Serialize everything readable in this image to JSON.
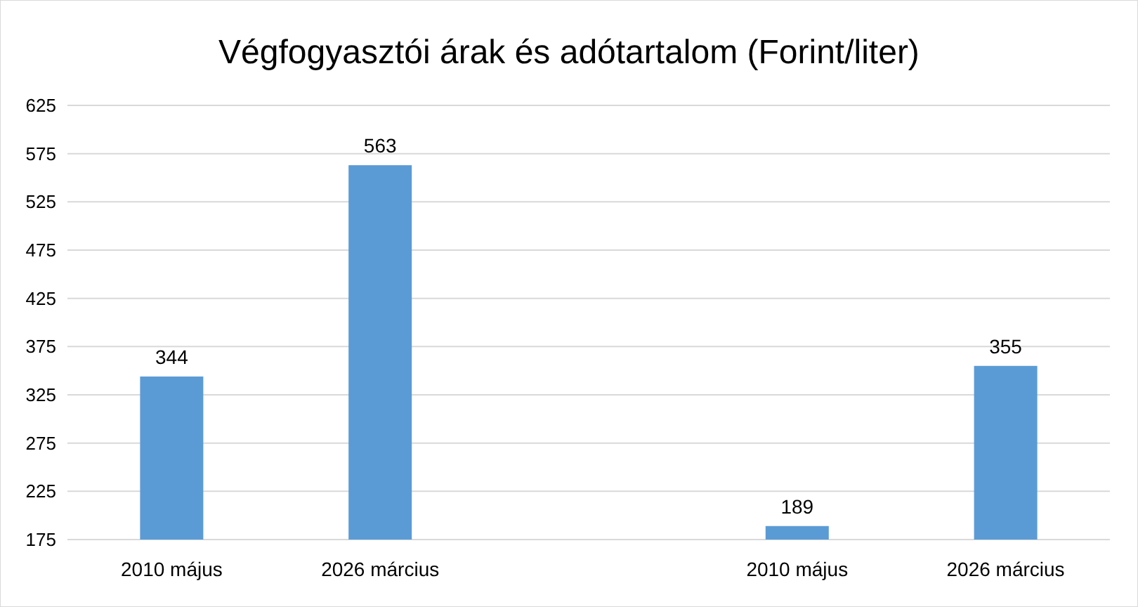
{
  "chart_data": {
    "type": "bar",
    "title": "Végfogyasztói árak és adótartalom (Forint/liter)",
    "categories": [
      "2010 május",
      "2026 március",
      null,
      "2010 május",
      "2026 március"
    ],
    "values": [
      344,
      563,
      null,
      189,
      355
    ],
    "color": "#5b9bd5",
    "ylim": [
      175,
      625
    ],
    "yticks": [
      175,
      225,
      275,
      325,
      375,
      425,
      475,
      525,
      575,
      625
    ],
    "grid": "y",
    "data_labels": true
  }
}
